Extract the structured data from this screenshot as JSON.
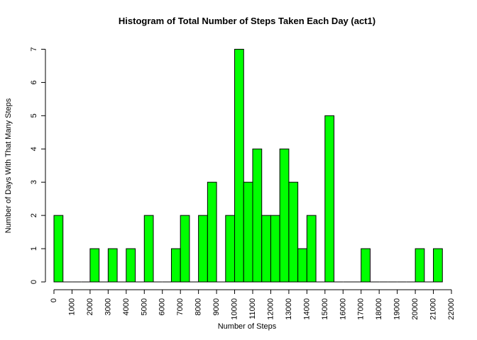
{
  "chart_data": {
    "type": "bar",
    "title": "Histogram of Total Number of Steps Taken Each Day (act1)",
    "xlabel": "Number of Steps",
    "ylabel": "Number of Days With That Many Steps",
    "bar_color": "#00ff00",
    "bin_width": 500,
    "xlim": [
      0,
      22000
    ],
    "ylim": [
      0,
      7
    ],
    "x_ticks": [
      0,
      1000,
      2000,
      3000,
      4000,
      5000,
      6000,
      7000,
      8000,
      9000,
      10000,
      11000,
      12000,
      13000,
      14000,
      15000,
      16000,
      17000,
      18000,
      19000,
      20000,
      21000,
      22000
    ],
    "y_ticks": [
      0,
      1,
      2,
      3,
      4,
      5,
      6,
      7
    ],
    "bins_start": [
      0,
      500,
      1000,
      1500,
      2000,
      2500,
      3000,
      3500,
      4000,
      4500,
      5000,
      5500,
      6000,
      6500,
      7000,
      7500,
      8000,
      8500,
      9000,
      9500,
      10000,
      10500,
      11000,
      11500,
      12000,
      12500,
      13000,
      13500,
      14000,
      14500,
      15000,
      15500,
      16000,
      16500,
      17000,
      17500,
      18000,
      18500,
      19000,
      19500,
      20000,
      20500,
      21000
    ],
    "counts": [
      2,
      0,
      0,
      0,
      1,
      0,
      1,
      0,
      1,
      0,
      2,
      0,
      0,
      1,
      2,
      0,
      2,
      3,
      0,
      2,
      7,
      3,
      4,
      2,
      2,
      4,
      3,
      1,
      2,
      0,
      5,
      0,
      0,
      0,
      1,
      0,
      0,
      0,
      0,
      0,
      1,
      0,
      1
    ],
    "grid": false,
    "legend": "none"
  }
}
